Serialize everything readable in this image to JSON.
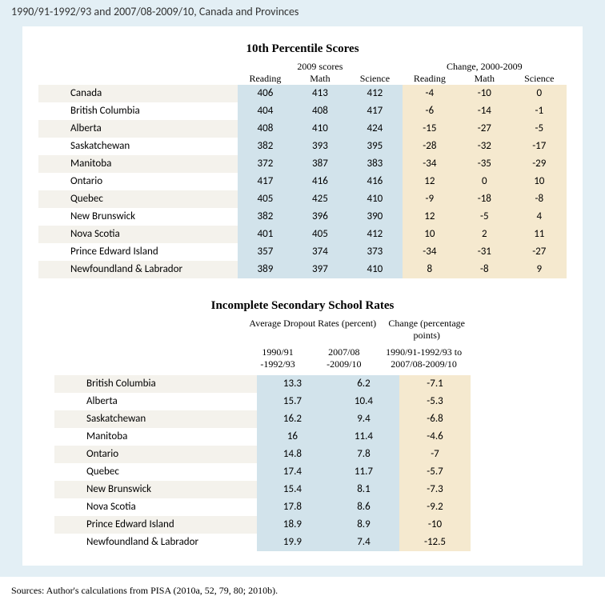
{
  "header_line": "1990/91-1992/93 and 2007/08-2009/10, Canada and Provinces",
  "section1": {
    "title": "10th Percentile Scores",
    "group1": "2009 scores",
    "group2": "Change, 2000-2009",
    "cols": [
      "Reading",
      "Math",
      "Science",
      "Reading",
      "Math",
      "Science"
    ],
    "rows": [
      {
        "name": "Canada",
        "v": [
          "406",
          "413",
          "412",
          "-4",
          "-10",
          "0"
        ]
      },
      {
        "name": "British Columbia",
        "v": [
          "404",
          "408",
          "417",
          "-6",
          "-14",
          "-1"
        ]
      },
      {
        "name": "Alberta",
        "v": [
          "408",
          "410",
          "424",
          "-15",
          "-27",
          "-5"
        ]
      },
      {
        "name": "Saskatchewan",
        "v": [
          "382",
          "393",
          "395",
          "-28",
          "-32",
          "-17"
        ]
      },
      {
        "name": "Manitoba",
        "v": [
          "372",
          "387",
          "383",
          "-34",
          "-35",
          "-29"
        ]
      },
      {
        "name": "Ontario",
        "v": [
          "417",
          "416",
          "416",
          "12",
          "0",
          "10"
        ]
      },
      {
        "name": "Quebec",
        "v": [
          "405",
          "425",
          "410",
          "-9",
          "-18",
          "-8"
        ]
      },
      {
        "name": "New Brunswick",
        "v": [
          "382",
          "396",
          "390",
          "12",
          "-5",
          "4"
        ]
      },
      {
        "name": "Nova Scotia",
        "v": [
          "401",
          "405",
          "412",
          "10",
          "2",
          "11"
        ]
      },
      {
        "name": "Prince Edward Island",
        "v": [
          "357",
          "374",
          "373",
          "-34",
          "-31",
          "-27"
        ]
      },
      {
        "name": "Newfoundland & Labrador",
        "v": [
          "389",
          "397",
          "410",
          "8",
          "-8",
          "9"
        ]
      }
    ]
  },
  "section2": {
    "title": "Incomplete Secondary School Rates",
    "group1": "Average Dropout Rates (percent)",
    "group2": "Change (percentage points)",
    "col1": "1990/91 -1992/93",
    "col2": "2007/08 -2009/10",
    "col3": "1990/91-1992/93 to 2007/08-2009/10",
    "rows": [
      {
        "name": "British Columbia",
        "v": [
          "13.3",
          "6.2",
          "-7.1"
        ]
      },
      {
        "name": "Alberta",
        "v": [
          "15.7",
          "10.4",
          "-5.3"
        ]
      },
      {
        "name": "Saskatchewan",
        "v": [
          "16.2",
          "9.4",
          "-6.8"
        ]
      },
      {
        "name": "Manitoba",
        "v": [
          "16",
          "11.4",
          "-4.6"
        ]
      },
      {
        "name": "Ontario",
        "v": [
          "14.8",
          "7.8",
          "-7"
        ]
      },
      {
        "name": "Quebec",
        "v": [
          "17.4",
          "11.7",
          "-5.7"
        ]
      },
      {
        "name": "New Brunswick",
        "v": [
          "15.4",
          "8.1",
          "-7.3"
        ]
      },
      {
        "name": "Nova Scotia",
        "v": [
          "17.8",
          "8.6",
          "-9.2"
        ]
      },
      {
        "name": "Prince Edward Island",
        "v": [
          "18.9",
          "8.9",
          "-10"
        ]
      },
      {
        "name": "Newfoundland & Labrador",
        "v": [
          "19.9",
          "7.4",
          "-12.5"
        ]
      }
    ]
  },
  "sources": "Sources: Author's calculations from PISA (2010a, 52, 79, 80; 2010b).",
  "colors": {
    "page_bg": "#e3eff5",
    "blue_cell": "#d2e3eb",
    "tan_cell": "#f5e9cf",
    "stripe": "#f4f2ec"
  }
}
